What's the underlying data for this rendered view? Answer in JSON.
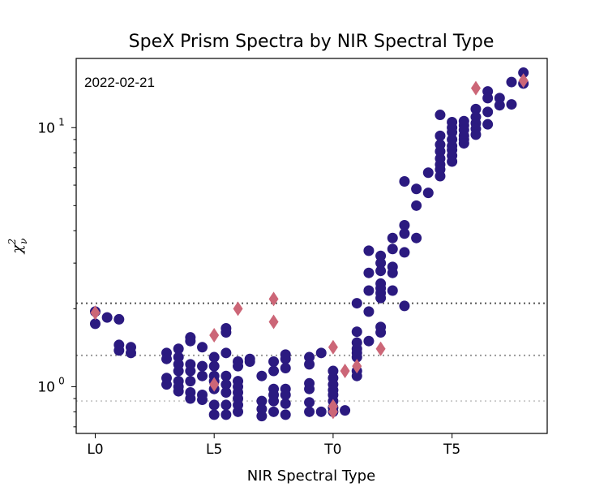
{
  "chart_data": {
    "type": "scatter",
    "title": "SpeX Prism Spectra by NIR Spectral Type",
    "xlabel": "NIR Spectral Type",
    "ylabel": "χ²ν",
    "ylabel_base": "χ",
    "ylabel_sup": "2",
    "ylabel_sub": "ν",
    "yscale": "log",
    "date_annotation": "2022-02-21",
    "xlim": [
      -0.8,
      19.0
    ],
    "ylim": [
      0.66,
      18.5
    ],
    "x_ticks": [
      {
        "value": 0,
        "label": "L0"
      },
      {
        "value": 5,
        "label": "L5"
      },
      {
        "value": 10,
        "label": "T0"
      },
      {
        "value": 15,
        "label": "T5"
      }
    ],
    "y_ticks": [
      {
        "value": 1,
        "base": "10",
        "exp": "0"
      },
      {
        "value": 10,
        "base": "10",
        "exp": "1"
      }
    ],
    "hlines": [
      {
        "y": 2.1,
        "color": "#555555"
      },
      {
        "y": 1.32,
        "color": "#999999"
      },
      {
        "y": 0.88,
        "color": "#cccccc"
      }
    ],
    "series": [
      {
        "name": "standards",
        "marker": "circle",
        "color": "#2b1a80",
        "points": [
          [
            0,
            1.95
          ],
          [
            0,
            1.75
          ],
          [
            0.5,
            1.85
          ],
          [
            1,
            1.82
          ],
          [
            1,
            1.45
          ],
          [
            1,
            1.38
          ],
          [
            1.5,
            1.42
          ],
          [
            1.5,
            1.35
          ],
          [
            3,
            1.35
          ],
          [
            3,
            1.28
          ],
          [
            3,
            1.08
          ],
          [
            3,
            1.02
          ],
          [
            3.5,
            1.4
          ],
          [
            3.5,
            1.3
          ],
          [
            3.5,
            1.22
          ],
          [
            3.5,
            1.15
          ],
          [
            3.5,
            1.05
          ],
          [
            3.5,
            1.0
          ],
          [
            3.5,
            0.96
          ],
          [
            4,
            1.55
          ],
          [
            4,
            1.5
          ],
          [
            4,
            1.22
          ],
          [
            4,
            1.15
          ],
          [
            4,
            1.05
          ],
          [
            4,
            0.95
          ],
          [
            4,
            0.9
          ],
          [
            4.5,
            1.42
          ],
          [
            4.5,
            1.2
          ],
          [
            4.5,
            1.1
          ],
          [
            4.5,
            0.93
          ],
          [
            4.5,
            0.89
          ],
          [
            5,
            1.3
          ],
          [
            5,
            1.2
          ],
          [
            5,
            1.1
          ],
          [
            5,
            1.05
          ],
          [
            5,
            0.98
          ],
          [
            5,
            0.85
          ],
          [
            5,
            0.78
          ],
          [
            5.5,
            1.68
          ],
          [
            5.5,
            1.62
          ],
          [
            5.5,
            1.35
          ],
          [
            5.5,
            1.1
          ],
          [
            5.5,
            1.02
          ],
          [
            5.5,
            0.95
          ],
          [
            5.5,
            0.85
          ],
          [
            5.5,
            0.78
          ],
          [
            6,
            1.25
          ],
          [
            6,
            1.2
          ],
          [
            6,
            1.05
          ],
          [
            6,
            1.0
          ],
          [
            6,
            0.95
          ],
          [
            6,
            0.9
          ],
          [
            6,
            0.85
          ],
          [
            6,
            0.8
          ],
          [
            6.5,
            1.28
          ],
          [
            6.5,
            1.25
          ],
          [
            7,
            1.1
          ],
          [
            7,
            0.88
          ],
          [
            7,
            0.82
          ],
          [
            7,
            0.77
          ],
          [
            7.5,
            1.25
          ],
          [
            7.5,
            1.15
          ],
          [
            7.5,
            0.98
          ],
          [
            7.5,
            0.93
          ],
          [
            7.5,
            0.88
          ],
          [
            7.5,
            0.8
          ],
          [
            8,
            1.33
          ],
          [
            8,
            1.28
          ],
          [
            8,
            1.18
          ],
          [
            8,
            0.98
          ],
          [
            8,
            0.93
          ],
          [
            8,
            0.86
          ],
          [
            8,
            0.78
          ],
          [
            9,
            1.3
          ],
          [
            9,
            1.22
          ],
          [
            9,
            1.03
          ],
          [
            9,
            0.98
          ],
          [
            9,
            0.87
          ],
          [
            9,
            0.8
          ],
          [
            9.5,
            1.35
          ],
          [
            9.5,
            0.8
          ],
          [
            10,
            1.15
          ],
          [
            10,
            1.08
          ],
          [
            10,
            1.02
          ],
          [
            10,
            0.97
          ],
          [
            10,
            0.93
          ],
          [
            10,
            0.88
          ],
          [
            10,
            0.83
          ],
          [
            10,
            0.8
          ],
          [
            10.5,
            0.81
          ],
          [
            11,
            2.1
          ],
          [
            11,
            1.63
          ],
          [
            11,
            1.48
          ],
          [
            11,
            1.4
          ],
          [
            11,
            1.35
          ],
          [
            11,
            1.3
          ],
          [
            11,
            1.15
          ],
          [
            11,
            1.1
          ],
          [
            11.5,
            3.35
          ],
          [
            11.5,
            2.75
          ],
          [
            11.5,
            2.35
          ],
          [
            11.5,
            1.95
          ],
          [
            11.5,
            1.5
          ],
          [
            12,
            3.2
          ],
          [
            12,
            3.0
          ],
          [
            12,
            2.8
          ],
          [
            12,
            2.5
          ],
          [
            12,
            2.4
          ],
          [
            12,
            2.3
          ],
          [
            12,
            2.2
          ],
          [
            12,
            1.7
          ],
          [
            12,
            1.62
          ],
          [
            12.5,
            3.75
          ],
          [
            12.5,
            3.4
          ],
          [
            12.5,
            2.9
          ],
          [
            12.5,
            2.75
          ],
          [
            12.5,
            2.35
          ],
          [
            13,
            6.2
          ],
          [
            13,
            4.2
          ],
          [
            13,
            3.9
          ],
          [
            13,
            3.3
          ],
          [
            13,
            2.05
          ],
          [
            13.5,
            5.8
          ],
          [
            13.5,
            5.0
          ],
          [
            13.5,
            3.75
          ],
          [
            14,
            6.7
          ],
          [
            14,
            5.6
          ],
          [
            14.5,
            11.2
          ],
          [
            14.5,
            9.3
          ],
          [
            14.5,
            8.6
          ],
          [
            14.5,
            8.1
          ],
          [
            14.5,
            7.6
          ],
          [
            14.5,
            7.2
          ],
          [
            14.5,
            6.9
          ],
          [
            14.5,
            6.5
          ],
          [
            15,
            10.5
          ],
          [
            15,
            10.0
          ],
          [
            15,
            9.6
          ],
          [
            15,
            9.0
          ],
          [
            15,
            8.5
          ],
          [
            15,
            8.2
          ],
          [
            15,
            7.8
          ],
          [
            15,
            7.4
          ],
          [
            15.5,
            10.6
          ],
          [
            15.5,
            10.2
          ],
          [
            15.5,
            9.8
          ],
          [
            15.5,
            9.3
          ],
          [
            15.5,
            9.0
          ],
          [
            15.5,
            8.7
          ],
          [
            16,
            11.8
          ],
          [
            16,
            11.0
          ],
          [
            16,
            10.4
          ],
          [
            16,
            9.9
          ],
          [
            16,
            9.4
          ],
          [
            16.5,
            13.8
          ],
          [
            16.5,
            13.0
          ],
          [
            16.5,
            11.5
          ],
          [
            16.5,
            10.3
          ],
          [
            17,
            13.0
          ],
          [
            17,
            12.2
          ],
          [
            17.5,
            15.0
          ],
          [
            17.5,
            12.3
          ],
          [
            18,
            16.3
          ],
          [
            18,
            14.8
          ]
        ]
      },
      {
        "name": "subdwarfs",
        "marker": "diamond",
        "color": "#cc6677",
        "points": [
          [
            0,
            1.93
          ],
          [
            5,
            1.58
          ],
          [
            5,
            1.02
          ],
          [
            6,
            2.0
          ],
          [
            7.5,
            2.18
          ],
          [
            7.5,
            1.78
          ],
          [
            10,
            1.42
          ],
          [
            10,
            0.84
          ],
          [
            10,
            0.8
          ],
          [
            10.5,
            1.15
          ],
          [
            11,
            1.2
          ],
          [
            12,
            1.4
          ],
          [
            16,
            14.2
          ],
          [
            18,
            15.2
          ]
        ]
      }
    ]
  }
}
